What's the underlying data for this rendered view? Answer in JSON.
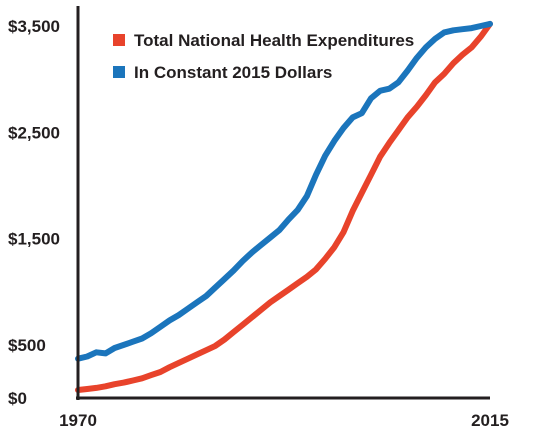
{
  "chart_data": {
    "type": "line",
    "title": "",
    "xlabel": "",
    "ylabel": "",
    "x_tick_labels": [
      "1970",
      "2015"
    ],
    "y_tick_labels": [
      "$3,500",
      "$2,500",
      "$1,500",
      "$500",
      "$0"
    ],
    "y_tick_values": [
      3500,
      2500,
      1500,
      500,
      0
    ],
    "xlim": [
      1970,
      2015
    ],
    "ylim": [
      0,
      3500
    ],
    "grid": false,
    "legend_position": "top-left",
    "x": [
      1970,
      1971,
      1972,
      1973,
      1974,
      1975,
      1976,
      1977,
      1978,
      1979,
      1980,
      1981,
      1982,
      1983,
      1984,
      1985,
      1986,
      1987,
      1988,
      1989,
      1990,
      1991,
      1992,
      1993,
      1994,
      1995,
      1996,
      1997,
      1998,
      1999,
      2000,
      2001,
      2002,
      2003,
      2004,
      2005,
      2006,
      2007,
      2008,
      2009,
      2010,
      2011,
      2012,
      2013,
      2014,
      2015
    ],
    "series": [
      {
        "name": "Total National Health Expenditures",
        "color": "#e8432b",
        "values": [
          75,
          85,
          95,
          110,
          130,
          145,
          165,
          185,
          215,
          245,
          290,
          330,
          370,
          410,
          450,
          490,
          550,
          620,
          690,
          760,
          830,
          900,
          960,
          1020,
          1080,
          1140,
          1210,
          1310,
          1420,
          1560,
          1760,
          1930,
          2100,
          2270,
          2400,
          2520,
          2640,
          2740,
          2850,
          2970,
          3050,
          3150,
          3230,
          3300,
          3400,
          3520
        ]
      },
      {
        "name": "In Constant 2015 Dollars",
        "color": "#1b75bc",
        "values": [
          370,
          390,
          430,
          420,
          470,
          500,
          530,
          560,
          610,
          670,
          730,
          780,
          840,
          900,
          960,
          1040,
          1120,
          1200,
          1290,
          1370,
          1440,
          1510,
          1580,
          1680,
          1770,
          1900,
          2100,
          2280,
          2420,
          2540,
          2640,
          2680,
          2820,
          2890,
          2910,
          2970,
          3080,
          3200,
          3300,
          3380,
          3440,
          3460,
          3470,
          3480,
          3500,
          3520
        ]
      }
    ],
    "colors": {
      "axis": "#231f20",
      "text": "#231f20"
    }
  }
}
